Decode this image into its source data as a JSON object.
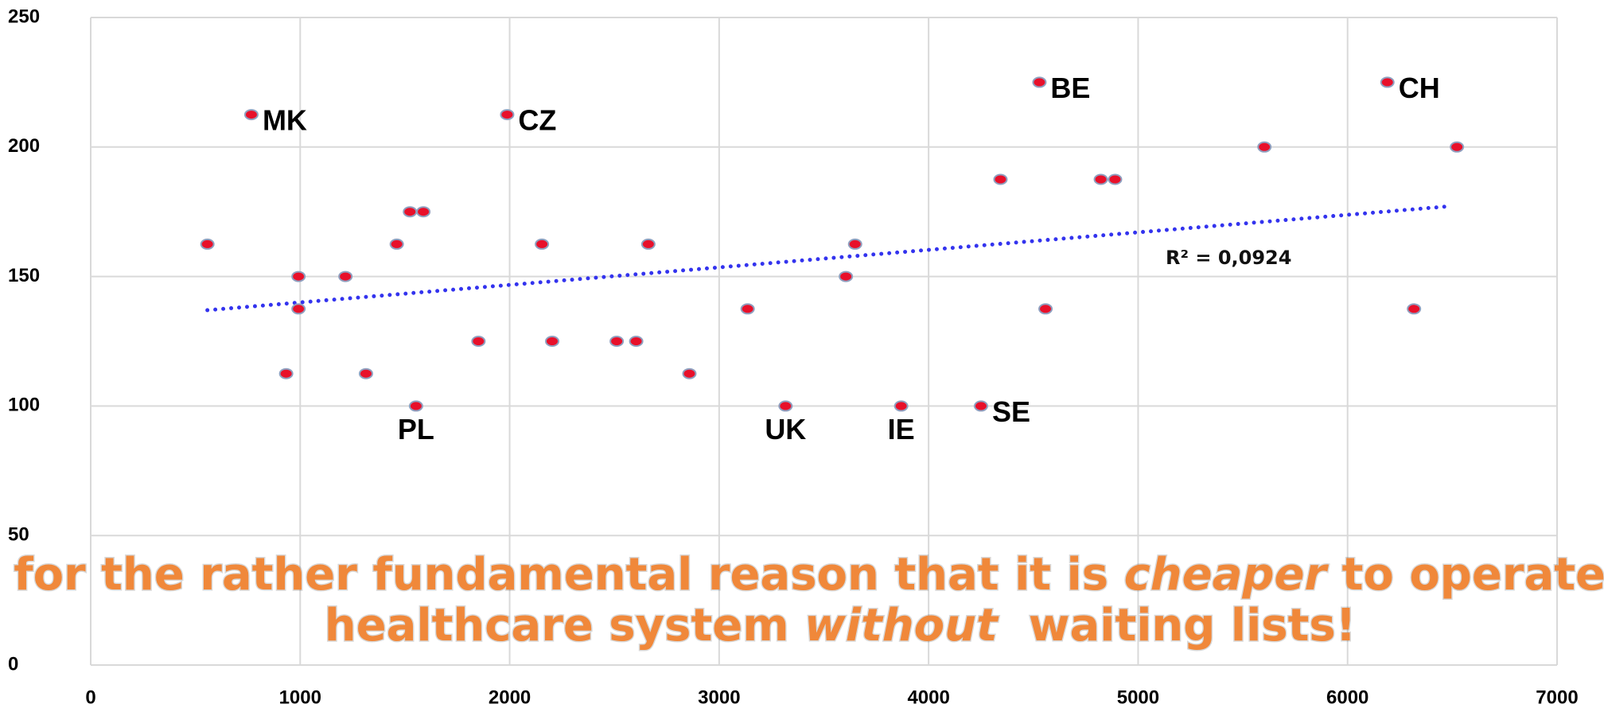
{
  "chart_data": {
    "type": "scatter",
    "x": [
      557,
      767,
      992,
      992,
      933,
      1216,
      1314,
      1461,
      1524,
      1588,
      1553,
      1851,
      1988,
      2154,
      2203,
      2511,
      2604,
      2662,
      2858,
      3136,
      3317,
      3605,
      3649,
      3869,
      4250,
      4343,
      4529,
      4558,
      4822,
      4890,
      5603,
      6190,
      6317,
      6522
    ],
    "values": [
      162.5,
      212.5,
      150,
      137.5,
      112.5,
      150,
      112.5,
      162.5,
      175,
      175,
      100,
      125,
      212.5,
      162.5,
      125,
      125,
      125,
      162.5,
      112.5,
      137.5,
      100,
      150,
      162.5,
      100,
      100,
      187.5,
      225,
      137.5,
      187.5,
      187.5,
      200,
      225,
      137.5,
      200
    ],
    "point_labels": [
      null,
      "MK",
      null,
      null,
      null,
      null,
      null,
      null,
      null,
      null,
      "PL",
      null,
      "CZ",
      null,
      null,
      null,
      null,
      null,
      null,
      null,
      "UK",
      null,
      null,
      "IE",
      "SE",
      null,
      "BE",
      null,
      null,
      null,
      null,
      "CH",
      null,
      null
    ],
    "color": "#e8102a",
    "xlim": [
      0,
      7000
    ],
    "xticks": [
      0,
      1000,
      2000,
      3000,
      4000,
      5000,
      6000,
      7000
    ],
    "ylim": [
      0,
      250
    ],
    "yticks": [
      0,
      50,
      100,
      150,
      200,
      250
    ],
    "grid": true,
    "trendline": {
      "x": [
        557,
        6470
      ],
      "values": [
        137,
        177
      ],
      "color": "#3333ee"
    },
    "annotation": "R² = 0,0924",
    "overlay_lines": [
      [
        {
          "text": "for the rather fundamental reason that it is ",
          "italic": false
        },
        {
          "text": "cheaper",
          "italic": true
        },
        {
          "text": " to operate  a",
          "italic": false
        }
      ],
      [
        {
          "text": "healthcare system ",
          "italic": false
        },
        {
          "text": "without",
          "italic": true
        },
        {
          "text": "  waiting lists!",
          "italic": false
        }
      ]
    ]
  }
}
